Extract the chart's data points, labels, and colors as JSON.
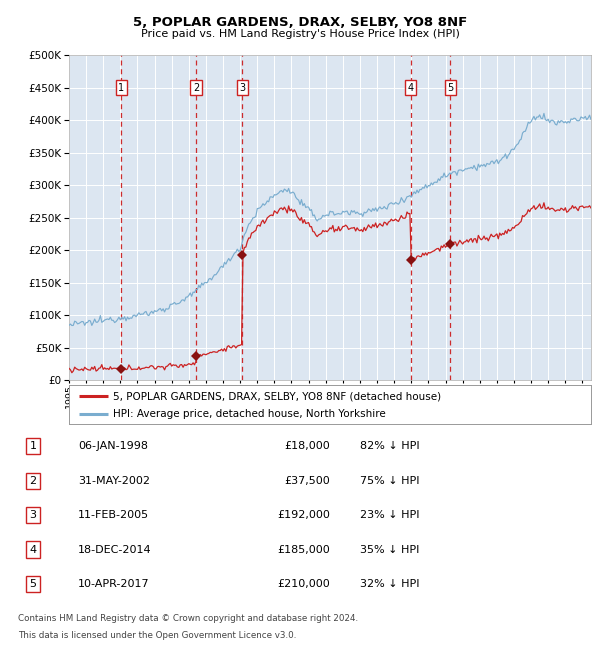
{
  "title": "5, POPLAR GARDENS, DRAX, SELBY, YO8 8NF",
  "subtitle": "Price paid vs. HM Land Registry's House Price Index (HPI)",
  "background_color": "#dce6f1",
  "grid_color": "#ffffff",
  "legend_label_red": "5, POPLAR GARDENS, DRAX, SELBY, YO8 8NF (detached house)",
  "legend_label_blue": "HPI: Average price, detached house, North Yorkshire",
  "footer_line1": "Contains HM Land Registry data © Crown copyright and database right 2024.",
  "footer_line2": "This data is licensed under the Open Government Licence v3.0.",
  "transactions": [
    {
      "num": 1,
      "date": "06-JAN-1998",
      "price": 18000,
      "price_str": "£18,000",
      "pct": "82% ↓ HPI",
      "x": 1998.04
    },
    {
      "num": 2,
      "date": "31-MAY-2002",
      "price": 37500,
      "price_str": "£37,500",
      "pct": "75% ↓ HPI",
      "x": 2002.42
    },
    {
      "num": 3,
      "date": "11-FEB-2005",
      "price": 192000,
      "price_str": "£192,000",
      "pct": "23% ↓ HPI",
      "x": 2005.12
    },
    {
      "num": 4,
      "date": "18-DEC-2014",
      "price": 185000,
      "price_str": "£185,000",
      "pct": "35% ↓ HPI",
      "x": 2014.96
    },
    {
      "num": 5,
      "date": "10-APR-2017",
      "price": 210000,
      "price_str": "£210,000",
      "pct": "32% ↓ HPI",
      "x": 2017.29
    }
  ],
  "red_vline_color": "#cc2222",
  "blue_vline_color": "#9999bb",
  "red_line_color": "#cc2222",
  "blue_line_color": "#7aadcf",
  "marker_color": "#881111",
  "ylim": [
    0,
    500000
  ],
  "xlim": [
    1995.0,
    2025.5
  ],
  "yticks": [
    0,
    50000,
    100000,
    150000,
    200000,
    250000,
    300000,
    350000,
    400000,
    450000,
    500000
  ]
}
